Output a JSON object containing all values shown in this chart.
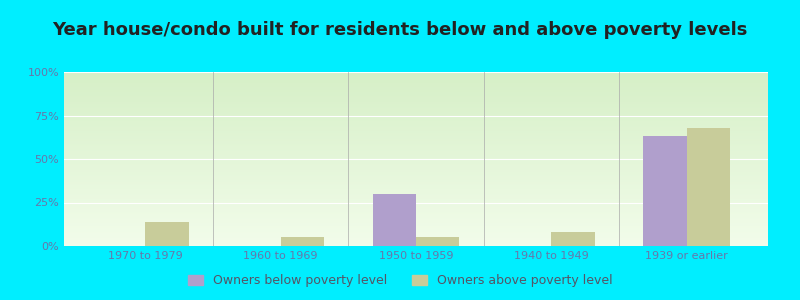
{
  "title": "Year house/condo built for residents below and above poverty levels",
  "categories": [
    "1970 to 1979",
    "1960 to 1969",
    "1950 to 1959",
    "1940 to 1949",
    "1939 or earlier"
  ],
  "below_poverty": [
    0,
    0,
    30,
    0,
    63
  ],
  "above_poverty": [
    14,
    5,
    5,
    8,
    68
  ],
  "below_color": "#b09fcc",
  "above_color": "#c8cc9a",
  "ylim": [
    0,
    100
  ],
  "yticks": [
    0,
    25,
    50,
    75,
    100
  ],
  "ytick_labels": [
    "0%",
    "25%",
    "50%",
    "75%",
    "100%"
  ],
  "legend_below": "Owners below poverty level",
  "legend_above": "Owners above poverty level",
  "outer_bg": "#00eeff",
  "title_fontsize": 13,
  "bar_width": 0.32
}
